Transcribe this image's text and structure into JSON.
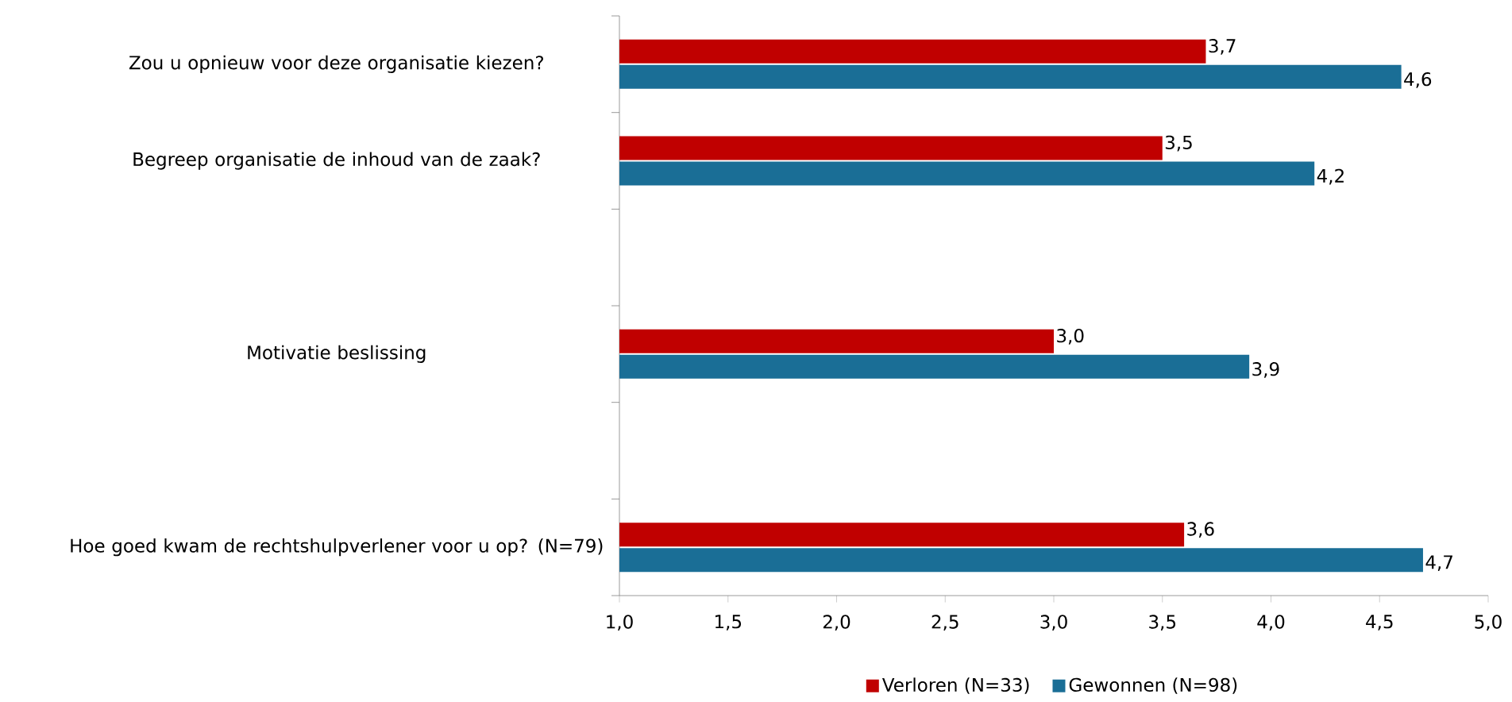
{
  "chart_data": {
    "type": "bar",
    "orientation": "horizontal",
    "categories": [
      "Zou u opnieuw voor deze organisatie kiezen?",
      "Begreep organisatie de inhoud van de zaak?",
      null,
      "Motivatie beslissing",
      null,
      "Hoe goed kwam de rechtshulpverlener voor u op? (N=79)"
    ],
    "series": [
      {
        "name": "Verloren (N=33)",
        "color": "#c00000",
        "values": [
          3.7,
          3.5,
          null,
          3.0,
          null,
          3.6
        ],
        "value_labels": [
          "3,7",
          "3,5",
          null,
          "3,0",
          null,
          "3,6"
        ]
      },
      {
        "name": "Gewonnen (N=98)",
        "color": "#1a6e96",
        "values": [
          4.6,
          4.2,
          null,
          3.9,
          null,
          4.7
        ],
        "value_labels": [
          "4,6",
          "4,2",
          null,
          "3,9",
          null,
          "4,7"
        ]
      }
    ],
    "xlim": [
      1,
      5
    ],
    "xticks": [
      {
        "value": 1,
        "label": "1,0"
      },
      {
        "value": 1.5,
        "label": "1,5"
      },
      {
        "value": 2,
        "label": "2,0"
      },
      {
        "value": 2.5,
        "label": "2,5"
      },
      {
        "value": 3,
        "label": "3,0"
      },
      {
        "value": 3.5,
        "label": "3,5"
      },
      {
        "value": 4,
        "label": "4,0"
      },
      {
        "value": 4.5,
        "label": "4,5"
      },
      {
        "value": 5,
        "label": "5,0"
      }
    ],
    "grid": false,
    "legend": "bottom"
  }
}
